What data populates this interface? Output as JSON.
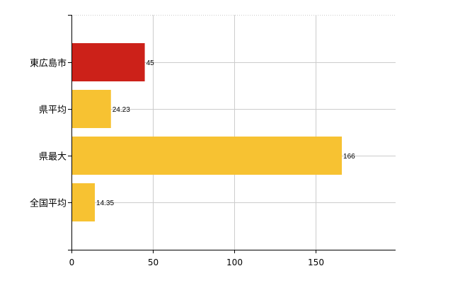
{
  "chart_data": {
    "type": "bar",
    "orientation": "horizontal",
    "categories": [
      "東広島市",
      "県平均",
      "県最大",
      "全国平均"
    ],
    "values": [
      45,
      24.23,
      166,
      14.35
    ],
    "value_labels": [
      "45",
      "24.23",
      "166",
      "14.35"
    ],
    "colors": [
      "#cc2119",
      "#f7c232",
      "#f7c232",
      "#f7c232"
    ],
    "xlim": [
      0,
      199
    ],
    "xticks": [
      0,
      50,
      100,
      150
    ],
    "xtick_labels": [
      "0",
      "50",
      "100",
      "150"
    ],
    "grid": true,
    "legend": "none",
    "title": "",
    "xlabel": "",
    "ylabel": ""
  }
}
